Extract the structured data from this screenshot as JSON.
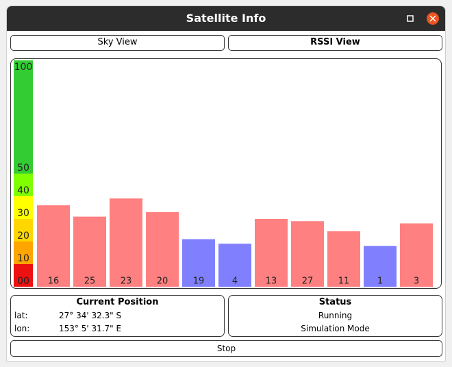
{
  "window": {
    "title": "Satellite Info"
  },
  "tabs": [
    "Sky View",
    "RSSI View"
  ],
  "chart_data": {
    "type": "bar",
    "categories": [
      "16",
      "25",
      "23",
      "20",
      "19",
      "4",
      "13",
      "27",
      "11",
      "1",
      "3"
    ],
    "values": [
      36,
      31,
      39,
      33,
      21,
      19,
      30,
      29,
      24.5,
      18,
      28
    ],
    "colors": [
      "#ff8080",
      "#ff8080",
      "#ff8080",
      "#ff8080",
      "#8080ff",
      "#8080ff",
      "#ff8080",
      "#ff8080",
      "#ff8080",
      "#8080ff",
      "#ff8080"
    ],
    "ylim": [
      0,
      100
    ],
    "yticks": [
      {
        "value": 0,
        "label": "00"
      },
      10,
      20,
      30,
      40,
      50,
      100
    ],
    "band_colors": [
      "#ee1111",
      "#ffa500",
      "#ffd700",
      "#ffff00",
      "#80ff00",
      "#33cc33"
    ]
  },
  "position": {
    "title": "Current Position",
    "lat_label": "lat:",
    "lat": "27° 34' 32.3\" S",
    "lon_label": "lon:",
    "lon": "153° 5' 31.7\" E"
  },
  "status": {
    "title": "Status",
    "lines": [
      "Running",
      "Simulation Mode"
    ]
  },
  "stop": "Stop"
}
